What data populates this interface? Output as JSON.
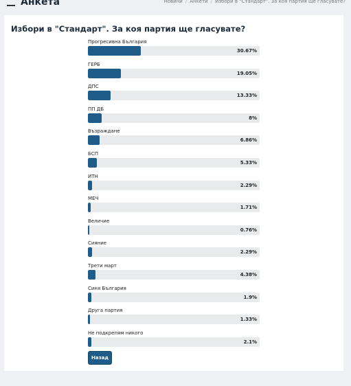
{
  "header": {
    "title": "Анкета",
    "breadcrumbs": [
      "Новини",
      "Анкети",
      "Избори в \"Стандарт\". За коя партия ще гласувате?"
    ]
  },
  "poll": {
    "question": "Избори в \"Стандарт\". За коя партия ще гласувате?",
    "options": [
      {
        "label": "Прогресивна България",
        "value": 30.67,
        "value_label": "30.67%"
      },
      {
        "label": "ГЕРБ",
        "value": 19.05,
        "value_label": "19.05%"
      },
      {
        "label": "ДПС",
        "value": 13.33,
        "value_label": "13.33%"
      },
      {
        "label": "ПП ДБ",
        "value": 8,
        "value_label": "8%"
      },
      {
        "label": "Възраждане",
        "value": 6.86,
        "value_label": "6.86%"
      },
      {
        "label": "БСП",
        "value": 5.33,
        "value_label": "5.33%"
      },
      {
        "label": "ИТН",
        "value": 2.29,
        "value_label": "2.29%"
      },
      {
        "label": "МЕЧ",
        "value": 1.71,
        "value_label": "1.71%"
      },
      {
        "label": "Величие",
        "value": 0.76,
        "value_label": "0.76%"
      },
      {
        "label": "Сияние",
        "value": 2.29,
        "value_label": "2.29%"
      },
      {
        "label": "Трети март",
        "value": 4.38,
        "value_label": "4.38%"
      },
      {
        "label": "Синя България",
        "value": 1.9,
        "value_label": "1.9%"
      },
      {
        "label": "Друга партия",
        "value": 1.33,
        "value_label": "1.33%"
      },
      {
        "label": "Не подкрепям никого",
        "value": 2.1,
        "value_label": "2.1%"
      }
    ],
    "button": "Назад"
  }
}
